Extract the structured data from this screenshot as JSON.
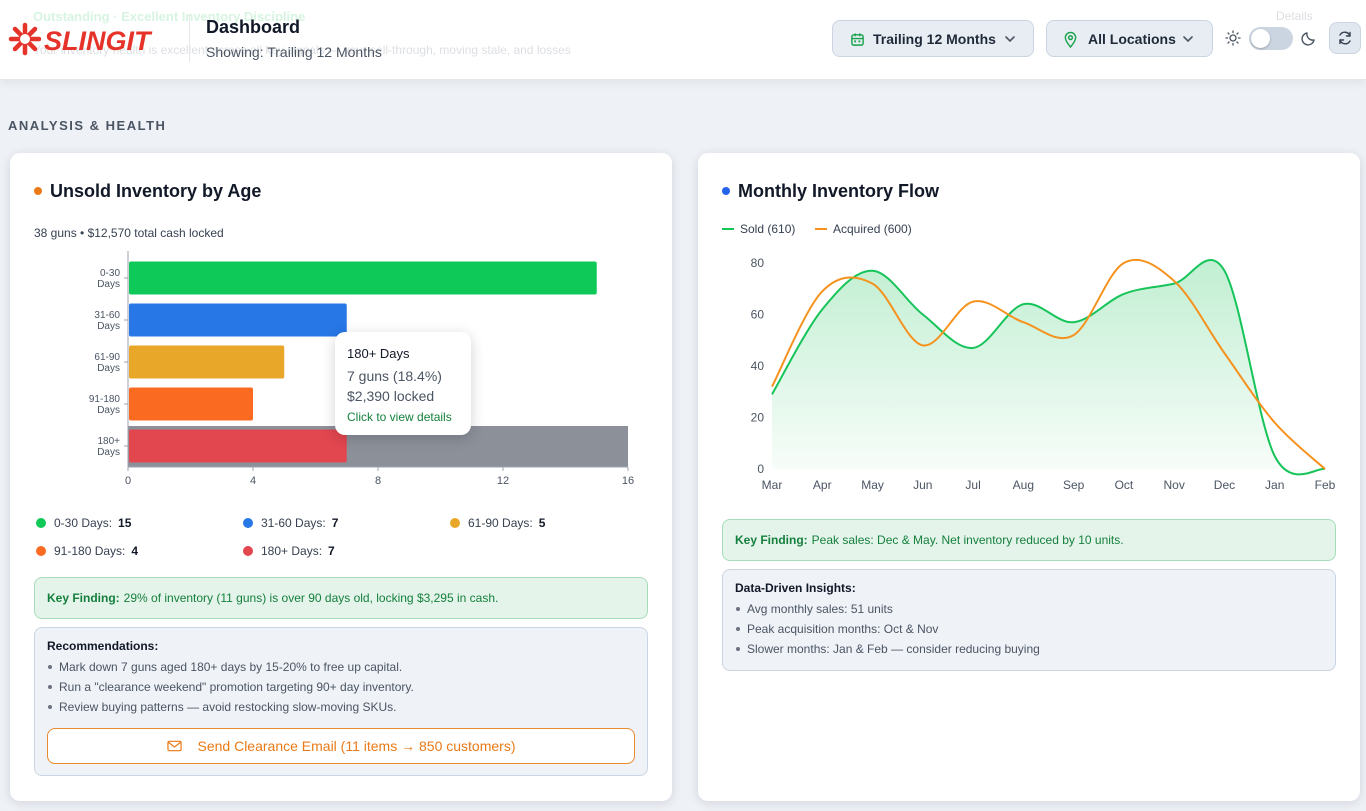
{
  "header": {
    "ghost_title": "Outstanding · Excellent Inventory Discipline",
    "ghost_subtitle": "Your inventory health is excellent across all key signals — your sell-through, moving stale, and losses",
    "ghost_right": "Details",
    "brand": "SLINGIT",
    "title": "Dashboard",
    "subtitle": "Showing: Trailing 12 Months",
    "period_select": "Trailing 12 Months",
    "location_select": "All Locations"
  },
  "section_label": "ANALYSIS & HEALTH",
  "age_card": {
    "title": "Unsold Inventory by Age",
    "summary": "38 guns • $12,570 total cash locked",
    "chart_data": {
      "type": "bar",
      "orientation": "horizontal",
      "categories": [
        [
          "0-30",
          "Days"
        ],
        [
          "31-60",
          "Days"
        ],
        [
          "61-90",
          "Days"
        ],
        [
          "91-180",
          "Days"
        ],
        [
          "180+",
          "Days"
        ]
      ],
      "values": [
        15,
        7,
        5,
        4,
        7
      ],
      "colors": [
        "#0ec858",
        "#2777e6",
        "#e9a72a",
        "#fb6a21",
        "#e2464f"
      ],
      "xlim": [
        0,
        16
      ],
      "xticks": [
        0,
        4,
        8,
        12,
        16
      ],
      "hover_band_category": "180+"
    },
    "legend": [
      {
        "label": "0-30 Days:",
        "value": "15",
        "color": "#0ec858"
      },
      {
        "label": "31-60 Days:",
        "value": "7",
        "color": "#2777e6"
      },
      {
        "label": "61-90 Days:",
        "value": "5",
        "color": "#e9a72a"
      },
      {
        "label": "91-180 Days:",
        "value": "4",
        "color": "#fb6a21"
      },
      {
        "label": "180+ Days:",
        "value": "7",
        "color": "#e2464f"
      }
    ],
    "tooltip": {
      "title": "180+ Days",
      "count": "7 guns (18.4%)",
      "locked": "$2,390 locked",
      "link": "Click to view details"
    },
    "finding_label": "Key Finding:",
    "finding_text": "29% of inventory (11 guns) is over 90 days old, locking $3,295 in cash.",
    "recommendations_title": "Recommendations:",
    "recommendations": [
      "Mark down 7 guns aged 180+ days by 15-20% to free up capital.",
      "Run a \"clearance weekend\" promotion targeting 90+ day inventory.",
      "Review buying patterns — avoid restocking slow-moving SKUs."
    ],
    "email_button": "Send Clearance Email (11 items → 850 customers)"
  },
  "flow_card": {
    "title": "Monthly Inventory Flow",
    "legend_sold": "Sold (610)",
    "legend_acquired": "Acquired (600)",
    "chart_data": {
      "type": "line",
      "x": [
        "Mar",
        "Apr",
        "May",
        "Jun",
        "Jul",
        "Aug",
        "Sep",
        "Oct",
        "Nov",
        "Dec",
        "Jan",
        "Feb"
      ],
      "series": [
        {
          "name": "Sold",
          "color": "#16c45a",
          "fill": true,
          "values": [
            29,
            62,
            77,
            60,
            47,
            64,
            57,
            68,
            72,
            77,
            5,
            0
          ]
        },
        {
          "name": "Acquired",
          "color": "#f5921e",
          "fill": false,
          "values": [
            32,
            69,
            72,
            48,
            65,
            57,
            52,
            80,
            73,
            45,
            18,
            0
          ]
        }
      ],
      "ylim": [
        0,
        80
      ],
      "yticks": [
        0,
        20,
        40,
        60,
        80
      ]
    },
    "finding_label": "Key Finding:",
    "finding_text": "Peak sales: Dec & May. Net inventory reduced by 10 units.",
    "insights_title": "Data-Driven Insights:",
    "insights": [
      "Avg monthly sales: 51 units",
      "Peak acquisition months: Oct & Nov",
      "Slower months: Jan & Feb — consider reducing buying"
    ]
  },
  "colors": {
    "accent_orange": "#ea7a17",
    "accent_blue": "#2563eb",
    "brand_red": "#e5332a"
  }
}
